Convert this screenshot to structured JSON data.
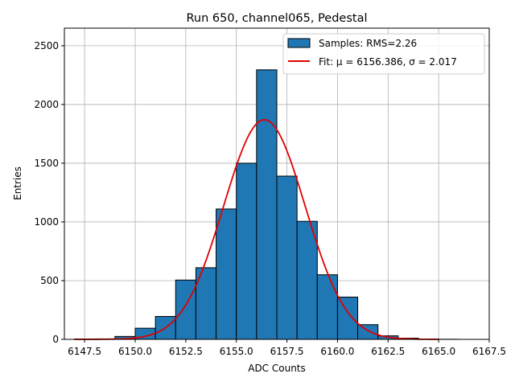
{
  "chart_data": {
    "type": "bar",
    "title": "Run 650, channel065, Pedestal",
    "xlabel": "ADC Counts",
    "ylabel": "Entries",
    "xlim": [
      6146.5,
      6167.5
    ],
    "ylim": [
      0,
      2650
    ],
    "xticks": [
      6147.5,
      6150.0,
      6152.5,
      6155.0,
      6157.5,
      6160.0,
      6162.5,
      6165.0,
      6167.5
    ],
    "xtick_labels": [
      "6147.5",
      "6150.0",
      "6152.5",
      "6155.0",
      "6157.5",
      "6160.0",
      "6162.5",
      "6165.0",
      "6167.5"
    ],
    "yticks": [
      0,
      500,
      1000,
      1500,
      2000,
      2500
    ],
    "ytick_labels": [
      "0",
      "500",
      "1000",
      "1500",
      "2000",
      "2500"
    ],
    "grid": true,
    "legend_position": "top-right",
    "histogram": {
      "name": "Samples: RMS=2.26",
      "color": "#1f77b4",
      "edge_color": "#000000",
      "bin_edges": [
        6147,
        6148,
        6149,
        6150,
        6151,
        6152,
        6153,
        6154,
        6155,
        6156,
        6157,
        6158,
        6159,
        6160,
        6161,
        6162,
        6163,
        6164,
        6165,
        6166,
        6167
      ],
      "counts": [
        3,
        4,
        25,
        95,
        195,
        505,
        610,
        1110,
        1500,
        2295,
        1390,
        1005,
        550,
        360,
        125,
        30,
        10,
        3,
        1,
        0
      ]
    },
    "fit": {
      "name": "Fit: μ = 6156.386, σ = 2.017",
      "color": "#e00000",
      "mu": 6156.386,
      "sigma": 2.017,
      "amplitude": 1870,
      "x_range": [
        6147,
        6165
      ]
    }
  }
}
